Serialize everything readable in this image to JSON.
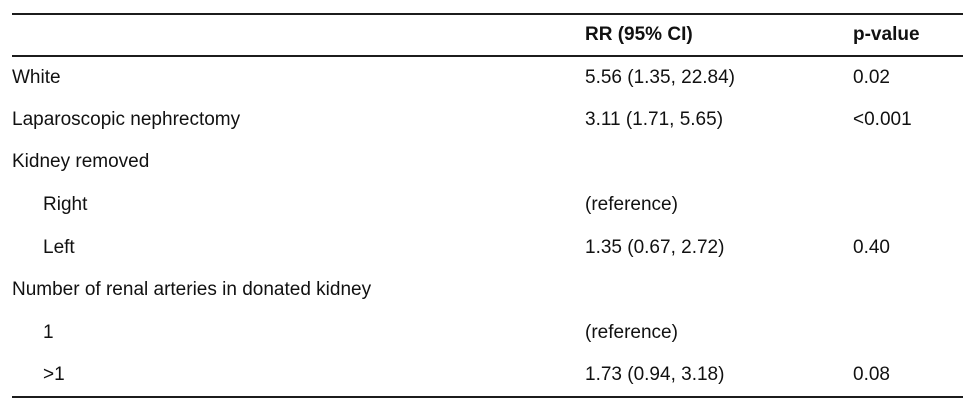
{
  "table": {
    "columns": [
      "",
      "RR (95% CI)",
      "p-value"
    ],
    "rows": [
      {
        "label": "White",
        "indent": false,
        "rr": "5.56 (1.35, 22.84)",
        "p": "0.02"
      },
      {
        "label": "Laparoscopic nephrectomy",
        "indent": false,
        "rr": "3.11 (1.71, 5.65)",
        "p": "<0.001"
      },
      {
        "label": "Kidney removed",
        "indent": false,
        "rr": "",
        "p": ""
      },
      {
        "label": "Right",
        "indent": true,
        "rr": "(reference)",
        "p": ""
      },
      {
        "label": "Left",
        "indent": true,
        "rr": "1.35 (0.67, 2.72)",
        "p": "0.40"
      },
      {
        "label": "Number of renal arteries in donated kidney",
        "indent": false,
        "rr": "",
        "p": ""
      },
      {
        "label": "1",
        "indent": true,
        "rr": "(reference)",
        "p": ""
      },
      {
        "label": ">1",
        "indent": true,
        "rr": "1.73 (0.94, 3.18)",
        "p": "0.08"
      }
    ],
    "colors": {
      "background": "#ffffff",
      "text": "#111111",
      "rule": "#1c1c1c"
    }
  }
}
